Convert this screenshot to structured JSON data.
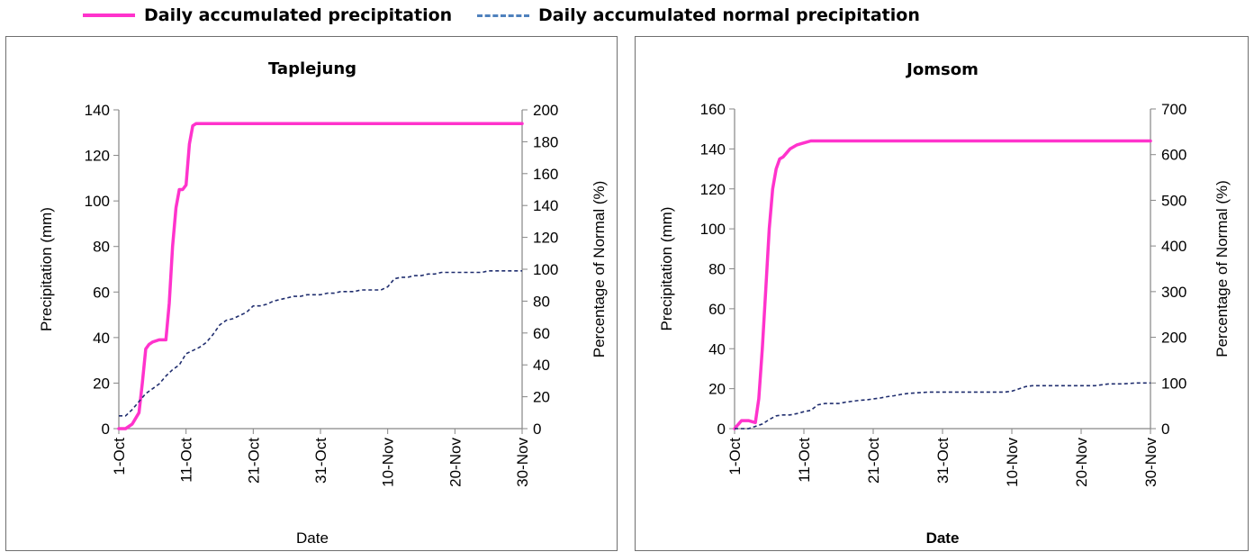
{
  "legend": [
    {
      "label": "Daily accumulated precipitation",
      "color": "#FF33CC",
      "style": "solid"
    },
    {
      "label": "Daily accumulated normal precipitation",
      "color": "#4F81BD",
      "style": "dashed"
    }
  ],
  "chart_data": [
    {
      "type": "line",
      "title": "Taplejung",
      "xlabel": "Date",
      "ylabel": "Precipitation (mm)",
      "y2label": "Percentage of Normal (%)",
      "xlim": [
        1,
        61
      ],
      "ylim": [
        0,
        140
      ],
      "y2lim": [
        0,
        200
      ],
      "y_ticks": [
        0,
        20,
        40,
        60,
        80,
        100,
        120,
        140
      ],
      "y2_ticks": [
        0,
        20,
        40,
        60,
        80,
        100,
        120,
        140,
        160,
        180,
        200
      ],
      "x_ticks": [
        {
          "x": 1,
          "label": "1-Oct"
        },
        {
          "x": 11,
          "label": "11-Oct"
        },
        {
          "x": 21,
          "label": "21-Oct"
        },
        {
          "x": 31,
          "label": "31-Oct"
        },
        {
          "x": 41,
          "label": "10-Nov"
        },
        {
          "x": 51,
          "label": "20-Nov"
        },
        {
          "x": 61,
          "label": "30-Nov"
        }
      ],
      "grid": false,
      "series": [
        {
          "name": "Daily accumulated precipitation",
          "axis": "left",
          "color": "#FF33CC",
          "x": [
            1,
            2,
            3,
            4,
            4.5,
            5,
            5.5,
            6,
            7,
            8,
            8.5,
            9,
            9.5,
            10,
            10.5,
            11,
            11.5,
            12,
            12.5,
            13,
            61
          ],
          "y": [
            0,
            0,
            2,
            7,
            20,
            35,
            37,
            38,
            39,
            39,
            55,
            80,
            97,
            105,
            105,
            107,
            125,
            133,
            134,
            134,
            134
          ]
        },
        {
          "name": "Daily accumulated normal precipitation",
          "axis": "right",
          "color": "#1F2D6E",
          "x": [
            1,
            2,
            3,
            4,
            5,
            6,
            7,
            8,
            9,
            10,
            11,
            12,
            13,
            14,
            15,
            16,
            17,
            18,
            19,
            20,
            21,
            22,
            23,
            24,
            25,
            26,
            27,
            28,
            29,
            30,
            31,
            32,
            33,
            34,
            35,
            36,
            37,
            38,
            39,
            40,
            41,
            42,
            43,
            44,
            45,
            46,
            47,
            48,
            49,
            50,
            51,
            52,
            53,
            54,
            55,
            56,
            57,
            58,
            59,
            60,
            61
          ],
          "y": [
            8,
            8,
            12,
            17,
            22,
            25,
            28,
            33,
            37,
            40,
            47,
            49,
            51,
            54,
            59,
            65,
            68,
            69,
            71,
            73,
            77,
            77,
            78,
            80,
            81,
            82,
            83,
            83,
            84,
            84,
            84,
            85,
            85,
            86,
            86,
            86,
            87,
            87,
            87,
            87,
            89,
            94,
            95,
            95,
            96,
            96,
            97,
            97,
            98,
            98,
            98,
            98,
            98,
            98,
            98,
            99,
            99,
            99,
            99,
            99,
            99
          ]
        }
      ]
    },
    {
      "type": "line",
      "title": "Jomsom",
      "xlabel": "Date",
      "ylabel": "Precipitation (mm)",
      "y2label": "Percentage of Normal (%)",
      "xlim": [
        1,
        61
      ],
      "ylim": [
        0,
        160
      ],
      "y2lim": [
        0,
        700
      ],
      "y_ticks": [
        0,
        20,
        40,
        60,
        80,
        100,
        120,
        140,
        160
      ],
      "y2_ticks": [
        0,
        100,
        200,
        300,
        400,
        500,
        600,
        700
      ],
      "x_ticks": [
        {
          "x": 1,
          "label": "1-Oct"
        },
        {
          "x": 11,
          "label": "11-Oct"
        },
        {
          "x": 21,
          "label": "21-Oct"
        },
        {
          "x": 31,
          "label": "31-Oct"
        },
        {
          "x": 41,
          "label": "10-Nov"
        },
        {
          "x": 51,
          "label": "20-Nov"
        },
        {
          "x": 61,
          "label": "30-Nov"
        }
      ],
      "grid": false,
      "series": [
        {
          "name": "Daily accumulated precipitation",
          "axis": "left",
          "color": "#FF33CC",
          "x": [
            1,
            2,
            3,
            4,
            4.5,
            5,
            5.5,
            6,
            6.5,
            7,
            7.5,
            8,
            8.5,
            9,
            10,
            11,
            12,
            13,
            61
          ],
          "y": [
            0,
            4,
            4,
            3,
            15,
            40,
            70,
            100,
            120,
            130,
            135,
            136,
            138,
            140,
            142,
            143,
            144,
            144,
            144
          ]
        },
        {
          "name": "Daily accumulated normal precipitation",
          "axis": "right",
          "color": "#1F2D6E",
          "x": [
            1,
            2,
            3,
            4,
            5,
            6,
            7,
            8,
            9,
            10,
            11,
            12,
            13,
            14,
            15,
            16,
            17,
            18,
            19,
            20,
            21,
            22,
            23,
            24,
            25,
            26,
            27,
            28,
            29,
            30,
            31,
            32,
            33,
            34,
            35,
            36,
            37,
            38,
            39,
            40,
            41,
            42,
            43,
            44,
            45,
            46,
            47,
            48,
            49,
            50,
            51,
            52,
            53,
            54,
            55,
            56,
            57,
            58,
            59,
            60,
            61
          ],
          "y": [
            0,
            0,
            0,
            5,
            10,
            20,
            28,
            30,
            30,
            33,
            37,
            40,
            52,
            55,
            55,
            55,
            58,
            60,
            62,
            63,
            65,
            67,
            70,
            72,
            75,
            77,
            78,
            79,
            80,
            80,
            80,
            80,
            80,
            80,
            80,
            80,
            80,
            80,
            80,
            80,
            82,
            87,
            92,
            94,
            94,
            94,
            94,
            94,
            94,
            94,
            94,
            94,
            94,
            96,
            98,
            98,
            98,
            99,
            100,
            100,
            100
          ]
        }
      ]
    }
  ]
}
